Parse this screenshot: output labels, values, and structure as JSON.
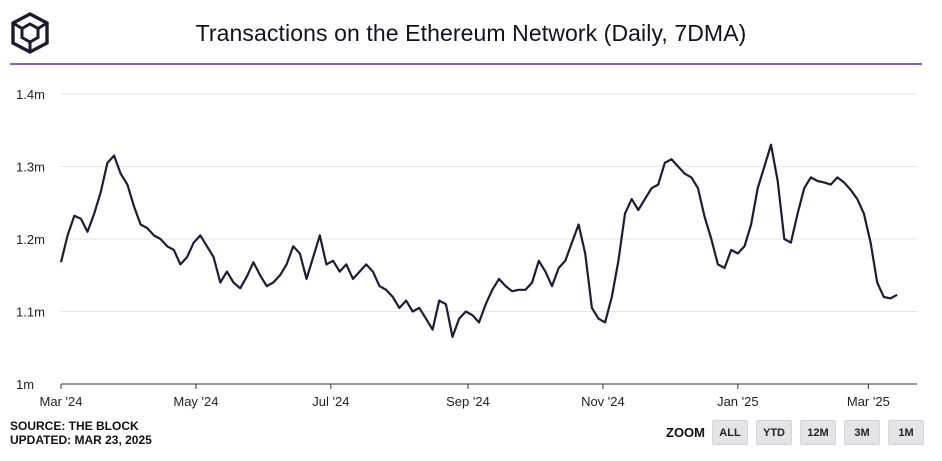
{
  "header": {
    "title": "Transactions on the Ethereum Network (Daily, 7DMA)",
    "logo_icon": "the-block-cube-logo"
  },
  "footer": {
    "source": "SOURCE: THE BLOCK",
    "updated": "UPDATED: MAR 23, 2025"
  },
  "zoom": {
    "label": "ZOOM",
    "buttons": [
      "ALL",
      "YTD",
      "12M",
      "3M",
      "1M"
    ]
  },
  "colors": {
    "line": "#1e1b3a",
    "accent_rule": "#8a5fb0",
    "grid": "#e6e6e6"
  },
  "chart_data": {
    "type": "line",
    "title": "Transactions on the Ethereum Network (Daily, 7DMA)",
    "ylim": [
      1.0,
      1.4
    ],
    "yticks": [
      1.0,
      1.1,
      1.2,
      1.3,
      1.4
    ],
    "ytick_labels": [
      "1m",
      "1.1m",
      "1.2m",
      "1.3m",
      "1.4m"
    ],
    "xlim": [
      "2024-03-01",
      "2025-03-23"
    ],
    "xtick_labels": [
      "Mar '24",
      "May '24",
      "Jul '24",
      "Sep '24",
      "Nov '24",
      "Jan '25",
      "Mar '25"
    ],
    "xtick_dates": [
      "2024-03-01",
      "2024-05-01",
      "2024-07-01",
      "2024-09-01",
      "2024-11-01",
      "2025-01-01",
      "2025-03-01"
    ],
    "grid": true,
    "series": [
      {
        "values_unit": "millions of transactions",
        "points": [
          [
            "2024-03-01",
            1.168
          ],
          [
            "2024-03-04",
            1.205
          ],
          [
            "2024-03-07",
            1.232
          ],
          [
            "2024-03-10",
            1.228
          ],
          [
            "2024-03-13",
            1.21
          ],
          [
            "2024-03-16",
            1.235
          ],
          [
            "2024-03-19",
            1.265
          ],
          [
            "2024-03-22",
            1.305
          ],
          [
            "2024-03-25",
            1.315
          ],
          [
            "2024-03-28",
            1.29
          ],
          [
            "2024-03-31",
            1.275
          ],
          [
            "2024-04-03",
            1.245
          ],
          [
            "2024-04-06",
            1.22
          ],
          [
            "2024-04-09",
            1.215
          ],
          [
            "2024-04-12",
            1.205
          ],
          [
            "2024-04-15",
            1.2
          ],
          [
            "2024-04-18",
            1.19
          ],
          [
            "2024-04-21",
            1.185
          ],
          [
            "2024-04-24",
            1.165
          ],
          [
            "2024-04-27",
            1.175
          ],
          [
            "2024-04-30",
            1.195
          ],
          [
            "2024-05-03",
            1.205
          ],
          [
            "2024-05-06",
            1.19
          ],
          [
            "2024-05-09",
            1.175
          ],
          [
            "2024-05-12",
            1.14
          ],
          [
            "2024-05-15",
            1.155
          ],
          [
            "2024-05-18",
            1.14
          ],
          [
            "2024-05-21",
            1.132
          ],
          [
            "2024-05-24",
            1.148
          ],
          [
            "2024-05-27",
            1.168
          ],
          [
            "2024-05-30",
            1.15
          ],
          [
            "2024-06-02",
            1.135
          ],
          [
            "2024-06-05",
            1.14
          ],
          [
            "2024-06-08",
            1.15
          ],
          [
            "2024-06-11",
            1.165
          ],
          [
            "2024-06-14",
            1.19
          ],
          [
            "2024-06-17",
            1.18
          ],
          [
            "2024-06-20",
            1.145
          ],
          [
            "2024-06-23",
            1.175
          ],
          [
            "2024-06-26",
            1.205
          ],
          [
            "2024-06-29",
            1.165
          ],
          [
            "2024-07-02",
            1.17
          ],
          [
            "2024-07-05",
            1.155
          ],
          [
            "2024-07-08",
            1.165
          ],
          [
            "2024-07-11",
            1.145
          ],
          [
            "2024-07-14",
            1.155
          ],
          [
            "2024-07-17",
            1.165
          ],
          [
            "2024-07-20",
            1.155
          ],
          [
            "2024-07-23",
            1.135
          ],
          [
            "2024-07-26",
            1.13
          ],
          [
            "2024-07-29",
            1.12
          ],
          [
            "2024-08-01",
            1.105
          ],
          [
            "2024-08-04",
            1.115
          ],
          [
            "2024-08-07",
            1.1
          ],
          [
            "2024-08-10",
            1.105
          ],
          [
            "2024-08-13",
            1.09
          ],
          [
            "2024-08-16",
            1.075
          ],
          [
            "2024-08-19",
            1.115
          ],
          [
            "2024-08-22",
            1.11
          ],
          [
            "2024-08-25",
            1.065
          ],
          [
            "2024-08-28",
            1.09
          ],
          [
            "2024-08-31",
            1.1
          ],
          [
            "2024-09-03",
            1.095
          ],
          [
            "2024-09-06",
            1.085
          ],
          [
            "2024-09-09",
            1.11
          ],
          [
            "2024-09-12",
            1.13
          ],
          [
            "2024-09-15",
            1.145
          ],
          [
            "2024-09-18",
            1.135
          ],
          [
            "2024-09-21",
            1.128
          ],
          [
            "2024-09-24",
            1.13
          ],
          [
            "2024-09-27",
            1.13
          ],
          [
            "2024-09-30",
            1.14
          ],
          [
            "2024-10-03",
            1.17
          ],
          [
            "2024-10-06",
            1.155
          ],
          [
            "2024-10-09",
            1.135
          ],
          [
            "2024-10-12",
            1.16
          ],
          [
            "2024-10-15",
            1.17
          ],
          [
            "2024-10-18",
            1.195
          ],
          [
            "2024-10-21",
            1.22
          ],
          [
            "2024-10-24",
            1.18
          ],
          [
            "2024-10-27",
            1.105
          ],
          [
            "2024-10-30",
            1.09
          ],
          [
            "2024-11-02",
            1.085
          ],
          [
            "2024-11-05",
            1.12
          ],
          [
            "2024-11-08",
            1.17
          ],
          [
            "2024-11-11",
            1.235
          ],
          [
            "2024-11-14",
            1.255
          ],
          [
            "2024-11-17",
            1.24
          ],
          [
            "2024-11-20",
            1.255
          ],
          [
            "2024-11-23",
            1.27
          ],
          [
            "2024-11-26",
            1.275
          ],
          [
            "2024-11-29",
            1.305
          ],
          [
            "2024-12-02",
            1.31
          ],
          [
            "2024-12-05",
            1.3
          ],
          [
            "2024-12-08",
            1.29
          ],
          [
            "2024-12-11",
            1.285
          ],
          [
            "2024-12-14",
            1.27
          ],
          [
            "2024-12-17",
            1.23
          ],
          [
            "2024-12-20",
            1.2
          ],
          [
            "2024-12-23",
            1.165
          ],
          [
            "2024-12-26",
            1.16
          ],
          [
            "2024-12-29",
            1.185
          ],
          [
            "2025-01-01",
            1.18
          ],
          [
            "2025-01-04",
            1.19
          ],
          [
            "2025-01-07",
            1.22
          ],
          [
            "2025-01-10",
            1.27
          ],
          [
            "2025-01-13",
            1.3
          ],
          [
            "2025-01-16",
            1.33
          ],
          [
            "2025-01-19",
            1.28
          ],
          [
            "2025-01-22",
            1.2
          ],
          [
            "2025-01-25",
            1.195
          ],
          [
            "2025-01-28",
            1.235
          ],
          [
            "2025-01-31",
            1.27
          ],
          [
            "2025-02-03",
            1.285
          ],
          [
            "2025-02-06",
            1.28
          ],
          [
            "2025-02-09",
            1.278
          ],
          [
            "2025-02-12",
            1.275
          ],
          [
            "2025-02-15",
            1.285
          ],
          [
            "2025-02-18",
            1.278
          ],
          [
            "2025-02-21",
            1.268
          ],
          [
            "2025-02-24",
            1.255
          ],
          [
            "2025-02-27",
            1.235
          ],
          [
            "2025-03-02",
            1.195
          ],
          [
            "2025-03-05",
            1.14
          ],
          [
            "2025-03-08",
            1.12
          ],
          [
            "2025-03-11",
            1.118
          ],
          [
            "2025-03-14",
            1.123
          ]
        ]
      }
    ]
  }
}
